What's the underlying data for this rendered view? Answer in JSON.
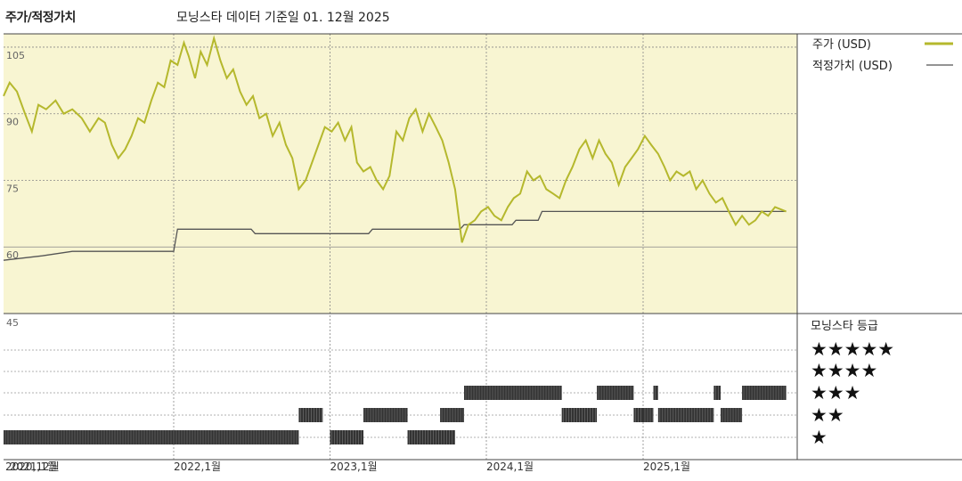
{
  "header": {
    "left_label": "주가/적정가치",
    "title": "모닝스타 데이터 기준일 01. 12월 2025"
  },
  "colors": {
    "price_line": "#b5b82d",
    "fair_value_line": "#555555",
    "plot_bg": "#f8f5d2",
    "rating_bar": "#333333"
  },
  "chart_data": [
    {
      "type": "line",
      "x_unit": "date",
      "ylim": [
        45,
        108
      ],
      "yticks": [
        105,
        90,
        75,
        60,
        45
      ],
      "xticks": [
        {
          "label": "2020,12월",
          "date": "2020-12-01"
        },
        {
          "label": "2021,1월",
          "date": "2021-01-01"
        },
        {
          "label": "2022,1월",
          "date": "2022-01-01"
        },
        {
          "label": "2023,1월",
          "date": "2023-01-01"
        },
        {
          "label": "2024,1월",
          "date": "2024-01-01"
        },
        {
          "label": "2025,1월",
          "date": "2025-01-01"
        }
      ],
      "grid": true,
      "legend_position": "right",
      "series": [
        {
          "name": "주가 (USD)",
          "kind": "line",
          "points": [
            [
              "2020-12-01",
              94
            ],
            [
              "2020-12-15",
              97
            ],
            [
              "2021-01-01",
              95
            ],
            [
              "2021-01-20",
              90
            ],
            [
              "2021-02-05",
              86
            ],
            [
              "2021-02-20",
              92
            ],
            [
              "2021-03-10",
              91
            ],
            [
              "2021-04-01",
              93
            ],
            [
              "2021-04-20",
              90
            ],
            [
              "2021-05-10",
              91
            ],
            [
              "2021-06-01",
              89
            ],
            [
              "2021-06-20",
              86
            ],
            [
              "2021-07-10",
              89
            ],
            [
              "2021-07-25",
              88
            ],
            [
              "2021-08-10",
              83
            ],
            [
              "2021-08-25",
              80
            ],
            [
              "2021-09-10",
              82
            ],
            [
              "2021-09-25",
              85
            ],
            [
              "2021-10-10",
              89
            ],
            [
              "2021-10-25",
              88
            ],
            [
              "2021-11-10",
              93
            ],
            [
              "2021-11-25",
              97
            ],
            [
              "2021-12-10",
              96
            ],
            [
              "2021-12-25",
              102
            ],
            [
              "2022-01-10",
              101
            ],
            [
              "2022-01-25",
              106
            ],
            [
              "2022-02-05",
              103
            ],
            [
              "2022-02-20",
              98
            ],
            [
              "2022-03-05",
              104
            ],
            [
              "2022-03-20",
              101
            ],
            [
              "2022-04-05",
              107
            ],
            [
              "2022-04-20",
              102
            ],
            [
              "2022-05-05",
              98
            ],
            [
              "2022-05-20",
              100
            ],
            [
              "2022-06-05",
              95
            ],
            [
              "2022-06-20",
              92
            ],
            [
              "2022-07-05",
              94
            ],
            [
              "2022-07-20",
              89
            ],
            [
              "2022-08-05",
              90
            ],
            [
              "2022-08-20",
              85
            ],
            [
              "2022-09-05",
              88
            ],
            [
              "2022-09-20",
              83
            ],
            [
              "2022-10-05",
              80
            ],
            [
              "2022-10-20",
              73
            ],
            [
              "2022-11-05",
              75
            ],
            [
              "2022-11-20",
              79
            ],
            [
              "2022-12-05",
              83
            ],
            [
              "2022-12-20",
              87
            ],
            [
              "2023-01-05",
              86
            ],
            [
              "2023-01-20",
              88
            ],
            [
              "2023-02-05",
              84
            ],
            [
              "2023-02-20",
              87
            ],
            [
              "2023-03-05",
              79
            ],
            [
              "2023-03-20",
              77
            ],
            [
              "2023-04-05",
              78
            ],
            [
              "2023-04-20",
              75
            ],
            [
              "2023-05-05",
              73
            ],
            [
              "2023-05-20",
              76
            ],
            [
              "2023-06-05",
              86
            ],
            [
              "2023-06-20",
              84
            ],
            [
              "2023-07-05",
              89
            ],
            [
              "2023-07-20",
              91
            ],
            [
              "2023-08-05",
              86
            ],
            [
              "2023-08-20",
              90
            ],
            [
              "2023-09-05",
              87
            ],
            [
              "2023-09-20",
              84
            ],
            [
              "2023-10-05",
              79
            ],
            [
              "2023-10-20",
              73
            ],
            [
              "2023-11-05",
              61
            ],
            [
              "2023-11-20",
              65
            ],
            [
              "2023-12-05",
              66
            ],
            [
              "2023-12-20",
              68
            ],
            [
              "2024-01-05",
              69
            ],
            [
              "2024-01-20",
              67
            ],
            [
              "2024-02-05",
              66
            ],
            [
              "2024-02-20",
              69
            ],
            [
              "2024-03-05",
              71
            ],
            [
              "2024-03-20",
              72
            ],
            [
              "2024-04-05",
              77
            ],
            [
              "2024-04-20",
              75
            ],
            [
              "2024-05-05",
              76
            ],
            [
              "2024-05-20",
              73
            ],
            [
              "2024-06-05",
              72
            ],
            [
              "2024-06-20",
              71
            ],
            [
              "2024-07-05",
              75
            ],
            [
              "2024-07-20",
              78
            ],
            [
              "2024-08-05",
              82
            ],
            [
              "2024-08-20",
              84
            ],
            [
              "2024-09-05",
              80
            ],
            [
              "2024-09-20",
              84
            ],
            [
              "2024-10-05",
              81
            ],
            [
              "2024-10-20",
              79
            ],
            [
              "2024-11-05",
              74
            ],
            [
              "2024-11-20",
              78
            ],
            [
              "2024-12-05",
              80
            ],
            [
              "2024-12-20",
              82
            ],
            [
              "2025-01-05",
              85
            ],
            [
              "2025-01-20",
              83
            ],
            [
              "2025-02-05",
              81
            ],
            [
              "2025-02-20",
              78
            ],
            [
              "2025-03-05",
              75
            ],
            [
              "2025-03-20",
              77
            ],
            [
              "2025-04-05",
              76
            ],
            [
              "2025-04-20",
              77
            ],
            [
              "2025-05-05",
              73
            ],
            [
              "2025-05-20",
              75
            ],
            [
              "2025-06-05",
              72
            ],
            [
              "2025-06-20",
              70
            ],
            [
              "2025-07-05",
              71
            ],
            [
              "2025-07-20",
              68
            ],
            [
              "2025-08-05",
              65
            ],
            [
              "2025-08-20",
              67
            ],
            [
              "2025-09-05",
              65
            ],
            [
              "2025-09-20",
              66
            ],
            [
              "2025-10-05",
              68
            ],
            [
              "2025-10-20",
              67
            ],
            [
              "2025-11-05",
              69
            ],
            [
              "2025-12-01",
              68
            ]
          ]
        },
        {
          "name": "적정가치 (USD)",
          "kind": "step",
          "points": [
            [
              "2020-12-01",
              57
            ],
            [
              "2021-03-01",
              58
            ],
            [
              "2021-05-10",
              59
            ],
            [
              "2022-01-01",
              59
            ],
            [
              "2022-01-10",
              64
            ],
            [
              "2022-07-01",
              64
            ],
            [
              "2022-07-10",
              63
            ],
            [
              "2023-04-01",
              63
            ],
            [
              "2023-04-10",
              64
            ],
            [
              "2023-11-01",
              64
            ],
            [
              "2023-11-10",
              65
            ],
            [
              "2024-03-01",
              65
            ],
            [
              "2024-03-10",
              66
            ],
            [
              "2024-05-01",
              66
            ],
            [
              "2024-05-10",
              68
            ],
            [
              "2025-09-01",
              68
            ],
            [
              "2025-09-10",
              68
            ],
            [
              "2025-12-01",
              68
            ]
          ]
        }
      ]
    },
    {
      "type": "rating_bars",
      "title": "모닝스타 등급",
      "levels": [
        {
          "stars": 5,
          "label": "★★★★★"
        },
        {
          "stars": 4,
          "label": "★★★★"
        },
        {
          "stars": 3,
          "label": "★★★"
        },
        {
          "stars": 2,
          "label": "★★"
        },
        {
          "stars": 1,
          "label": "★"
        }
      ],
      "periods": [
        {
          "stars": 1,
          "start": "2020-12-01",
          "end": "2022-10-20"
        },
        {
          "stars": 2,
          "start": "2022-10-20",
          "end": "2022-12-15"
        },
        {
          "stars": 1,
          "start": "2023-01-01",
          "end": "2023-03-20"
        },
        {
          "stars": 2,
          "start": "2023-03-20",
          "end": "2023-07-01"
        },
        {
          "stars": 1,
          "start": "2023-07-01",
          "end": "2023-10-20"
        },
        {
          "stars": 2,
          "start": "2023-09-15",
          "end": "2023-11-10"
        },
        {
          "stars": 3,
          "start": "2023-11-10",
          "end": "2024-06-25"
        },
        {
          "stars": 2,
          "start": "2024-06-25",
          "end": "2024-09-15"
        },
        {
          "stars": 3,
          "start": "2024-09-15",
          "end": "2024-12-10"
        },
        {
          "stars": 2,
          "start": "2024-12-10",
          "end": "2025-01-01"
        },
        {
          "stars": 2,
          "start": "2025-01-01",
          "end": "2025-01-25"
        },
        {
          "stars": 3,
          "start": "2025-01-25",
          "end": "2025-02-05"
        },
        {
          "stars": 2,
          "start": "2025-02-05",
          "end": "2025-06-15"
        },
        {
          "stars": 3,
          "start": "2025-06-15",
          "end": "2025-07-01"
        },
        {
          "stars": 2,
          "start": "2025-07-01",
          "end": "2025-08-20"
        },
        {
          "stars": 3,
          "start": "2025-08-20",
          "end": "2025-12-01"
        }
      ]
    }
  ]
}
